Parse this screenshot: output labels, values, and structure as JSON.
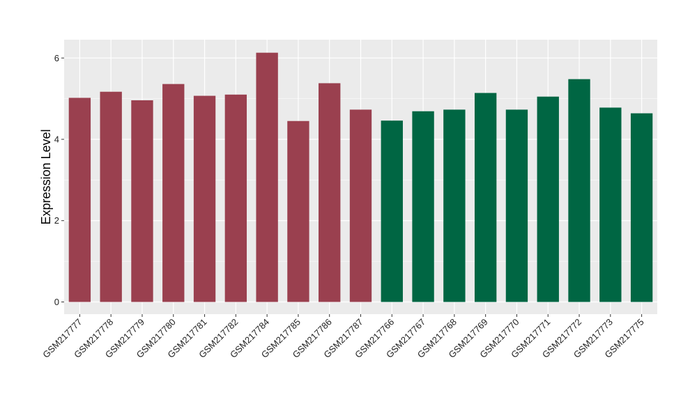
{
  "chart_data": {
    "type": "bar",
    "title": "",
    "xlabel": "",
    "ylabel": "Expression Level",
    "ylim": [
      -0.3,
      6.45
    ],
    "yticks": [
      0,
      2,
      4,
      6
    ],
    "grid": true,
    "legend": "none",
    "colors": {
      "group_1": "#9A404F",
      "group_2": "#006643",
      "panel_bg": "#EBEBEB",
      "grid": "#FFFFFF"
    },
    "categories": [
      "GSM217777",
      "GSM217778",
      "GSM217779",
      "GSM217780",
      "GSM217781",
      "GSM217782",
      "GSM217784",
      "GSM217785",
      "GSM217786",
      "GSM217787",
      "GSM217766",
      "GSM217767",
      "GSM217768",
      "GSM217769",
      "GSM217770",
      "GSM217771",
      "GSM217772",
      "GSM217773",
      "GSM217775"
    ],
    "values": [
      5.02,
      5.17,
      4.96,
      5.36,
      5.07,
      5.1,
      6.13,
      4.45,
      5.38,
      4.73,
      4.46,
      4.69,
      4.73,
      5.14,
      4.73,
      5.05,
      5.48,
      4.78,
      4.64
    ],
    "groups": [
      1,
      1,
      1,
      1,
      1,
      1,
      1,
      1,
      1,
      1,
      2,
      2,
      2,
      2,
      2,
      2,
      2,
      2,
      2
    ]
  }
}
